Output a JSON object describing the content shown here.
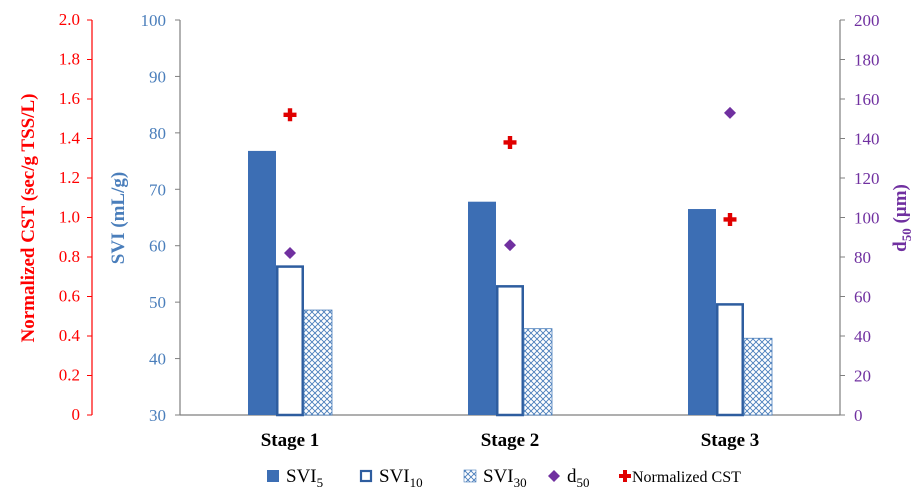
{
  "chart_data": {
    "type": "bar",
    "categories": [
      "Stage 1",
      "Stage 2",
      "Stage 3"
    ],
    "series": [
      {
        "name": "SVI5",
        "label_base": "SVI",
        "label_sub": "5",
        "axis": "svi",
        "style": "solid",
        "values": [
          76.8,
          67.8,
          66.5
        ]
      },
      {
        "name": "SVI10",
        "label_base": "SVI",
        "label_sub": "10",
        "axis": "svi",
        "style": "outline",
        "values": [
          56.3,
          52.8,
          49.6
        ]
      },
      {
        "name": "SVI30",
        "label_base": "SVI",
        "label_sub": "30",
        "axis": "svi",
        "style": "hatch",
        "values": [
          48.6,
          45.3,
          43.6
        ]
      },
      {
        "name": "d50",
        "label_base": "d",
        "label_sub": "50",
        "axis": "d50",
        "style": "diamond",
        "values": [
          82,
          86,
          153
        ]
      },
      {
        "name": "Normalized CST",
        "label_base": "Normalized CST",
        "label_sub": "",
        "axis": "cst",
        "style": "cross",
        "values": [
          1.52,
          1.38,
          0.99
        ]
      }
    ],
    "axes": {
      "cst": {
        "title": "Normalized CST (sec/g TSS/L)",
        "min": 0,
        "max": 2.0,
        "step": 0.2,
        "decimals": 1,
        "color": "#ff0000"
      },
      "svi": {
        "title": "SVI (mL/g)",
        "min": 30,
        "max": 100,
        "step": 10,
        "decimals": 0,
        "color": "#4a7ebb"
      },
      "d50": {
        "title_base": "d",
        "title_sub": "50",
        "title_unit": " (µm)",
        "min": 0,
        "max": 200,
        "step": 20,
        "decimals": 0,
        "color": "#7030a0"
      }
    },
    "grid": false,
    "legend_position": "bottom",
    "colors": {
      "bar_fill": "#3c6eb4",
      "bar_outline": "#2e5d9f",
      "diamond": "#7030a0",
      "cross": "#e00000",
      "axis_line": "#7f7f7f"
    }
  }
}
